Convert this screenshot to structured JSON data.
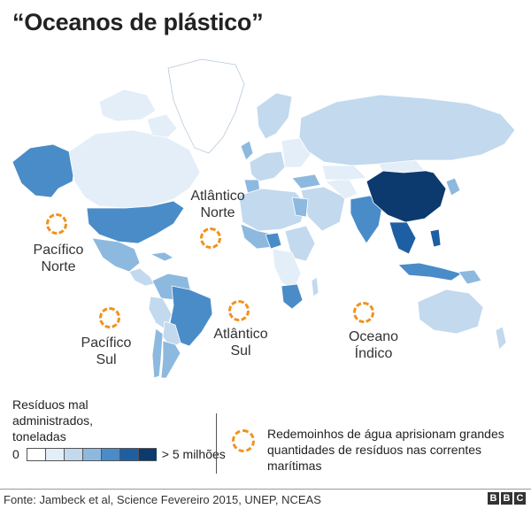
{
  "title": "“Oceanos de plástico”",
  "oceans": [
    {
      "id": "pacifico-norte",
      "label": "Pacífico\nNorte"
    },
    {
      "id": "atlantico-norte",
      "label": "Atlântico\nNorte"
    },
    {
      "id": "pacifico-sul",
      "label": "Pacífico\nSul"
    },
    {
      "id": "atlantico-sul",
      "label": "Atlântico\nSul"
    },
    {
      "id": "oceano-indico",
      "label": "Oceano\nÍndico"
    }
  ],
  "legend": {
    "title": "Resíduos mal\nadministrados,\ntoneladas",
    "scale_min": "0",
    "scale_max": "> 5 milhões",
    "scale_colors": [
      "#ffffff",
      "#e3eef8",
      "#c2d9ee",
      "#8db9df",
      "#4a8cc8",
      "#1e5fa3",
      "#0d3a6e"
    ]
  },
  "gyre_legend": {
    "text": "Redemoinhos de água aprisionam grandes quantidades de resíduos nas correntes marítimas"
  },
  "source": "Fonte: Jambeck et al, Science Fevereiro 2015, UNEP, NCEAS",
  "logo": "BBC",
  "colors": {
    "gyre": "#f0921e",
    "land_low": "#e3eef8",
    "land_mid": "#8db9df",
    "land_high": "#0d3a6e"
  }
}
